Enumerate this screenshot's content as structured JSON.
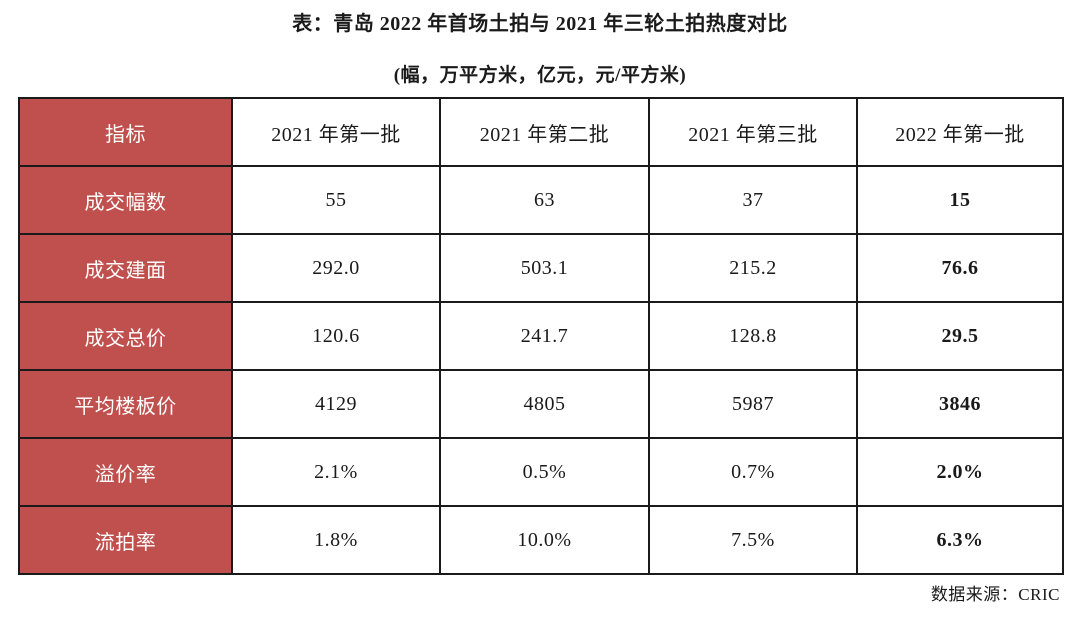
{
  "colors": {
    "header_red": "#C0504D",
    "border": "#1a1a1a",
    "text": "#1a1a1a",
    "header_text": "#ffffff"
  },
  "source_note": "数据来源：CRIC",
  "chart_data": {
    "type": "table",
    "title": "表：青岛 2022 年首场土拍与 2021 年三轮土拍热度对比",
    "subtitle": "(幅，万平方米，亿元，元/平方米)",
    "columns": [
      "指标",
      "2021 年第一批",
      "2021 年第二批",
      "2021 年第三批",
      "2022 年第一批"
    ],
    "rows": [
      {
        "label": "成交幅数",
        "values": [
          "55",
          "63",
          "37",
          "15"
        ]
      },
      {
        "label": "成交建面",
        "values": [
          "292.0",
          "503.1",
          "215.2",
          "76.6"
        ]
      },
      {
        "label": "成交总价",
        "values": [
          "120.6",
          "241.7",
          "128.8",
          "29.5"
        ]
      },
      {
        "label": "平均楼板价",
        "values": [
          "4129",
          "4805",
          "5987",
          "3846"
        ]
      },
      {
        "label": "溢价率",
        "values": [
          "2.1%",
          "0.5%",
          "0.7%",
          "2.0%"
        ]
      },
      {
        "label": "流拍率",
        "values": [
          "1.8%",
          "10.0%",
          "7.5%",
          "6.3%"
        ]
      }
    ],
    "layout_hints": {
      "header_column_highlighted": true,
      "last_column_bold": true,
      "grid": true
    }
  }
}
